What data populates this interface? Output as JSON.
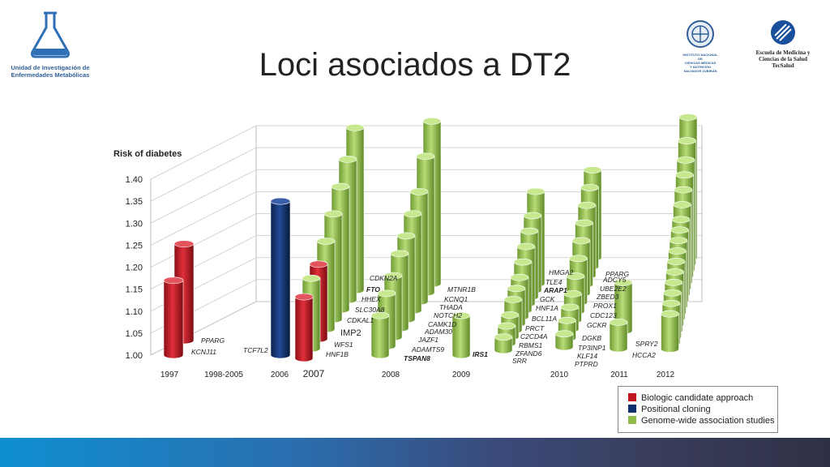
{
  "slide": {
    "title": "Loci asociados a DT2"
  },
  "logos": {
    "left_caption_1": "Unidad de Investigación de",
    "left_caption_2": "Enfermedades Metabólicas",
    "center_caption_1": "INSTITUTO NACIONAL DE",
    "center_caption_2": "CIENCIAS MÉDICAS",
    "center_caption_3": "Y NUTRICIÓN",
    "center_caption_4": "SALVADOR ZUBIRÁN",
    "right_caption_1": "Escuela de Medicina y",
    "right_caption_2": "Ciencias de la Salud",
    "right_caption_3": "TecSalud"
  },
  "legend": {
    "items": [
      {
        "label": "Biologic candidate approach",
        "color": "#c0141e"
      },
      {
        "label": "Positional cloning",
        "color": "#0f2e6e"
      },
      {
        "label": "Genome-wide association  studies",
        "color": "#8fbc4a"
      }
    ]
  },
  "colors": {
    "red": "#c0141e",
    "blue": "#0f2e6e",
    "green": "#8fbc4a"
  },
  "chart_data": {
    "type": "bar",
    "title": "",
    "ylabel": "Risk of diabetes",
    "ylim": [
      1.0,
      1.4
    ],
    "yticks": [
      "1.00",
      "1.05",
      "1.10",
      "1.15",
      "1.20",
      "1.25",
      "1.30",
      "1.35",
      "1.40"
    ],
    "categories": [
      "1997",
      "1998-2005",
      "2006",
      "2007",
      "2008",
      "2009",
      "2010",
      "2011",
      "2012"
    ],
    "groups": [
      {
        "year": "1997",
        "bars": [
          {
            "gene": "PPARG",
            "value": 1.22,
            "type": "red"
          },
          {
            "gene": "KCNJ11",
            "value": 1.17,
            "type": "red"
          }
        ]
      },
      {
        "year": "2006",
        "bars": [
          {
            "gene": "TCF7L2",
            "value": 1.35,
            "type": "blue"
          }
        ]
      },
      {
        "year": "2007",
        "bars": [
          {
            "gene": "CDKN2A",
            "value": 1.37,
            "type": "green"
          },
          {
            "gene": "FTO",
            "value": 1.32,
            "type": "green"
          },
          {
            "gene": "HHEX",
            "value": 1.28,
            "type": "green"
          },
          {
            "gene": "SLC30A8",
            "value": 1.24,
            "type": "green"
          },
          {
            "gene": "CDKAL1",
            "value": 1.2,
            "type": "green"
          },
          {
            "gene": "IMP2",
            "value": 1.17,
            "type": "red"
          },
          {
            "gene": "WFS1",
            "value": 1.16,
            "type": "green"
          },
          {
            "gene": "HNF1B",
            "value": 1.14,
            "type": "red"
          }
        ]
      },
      {
        "year": "2008",
        "bars": [
          {
            "gene": "MTNR1B",
            "value": 1.37,
            "type": "green"
          },
          {
            "gene": "KCNQ1",
            "value": 1.31,
            "type": "green"
          },
          {
            "gene": "THADA",
            "value": 1.25,
            "type": "green"
          },
          {
            "gene": "NOTCH2",
            "value": 1.22,
            "type": "green"
          },
          {
            "gene": "CAMK1D",
            "value": 1.19,
            "type": "green"
          },
          {
            "gene": "ADAM30",
            "value": 1.17,
            "type": "green"
          },
          {
            "gene": "JAZF1",
            "value": 1.14,
            "type": "green"
          },
          {
            "gene": "ADAMTS9",
            "value": 1.12,
            "type": "green"
          },
          {
            "gene": "TSPAN8",
            "value": 1.09,
            "type": "green"
          }
        ]
      },
      {
        "year": "2009",
        "bars": [
          {
            "gene": "IRS1",
            "value": 1.09,
            "type": "green"
          }
        ]
      },
      {
        "year": "2010",
        "bars": [
          {
            "gene": "HMGA2",
            "value": 1.21,
            "type": "green"
          },
          {
            "gene": "TLE4",
            "value": 1.17,
            "type": "green"
          },
          {
            "gene": "ARAP1",
            "value": 1.15,
            "type": "green"
          },
          {
            "gene": "GCK",
            "value": 1.13,
            "type": "green"
          },
          {
            "gene": "HNF1A",
            "value": 1.11,
            "type": "green"
          },
          {
            "gene": "BCL11A",
            "value": 1.09,
            "type": "green"
          },
          {
            "gene": "PRCT",
            "value": 1.08,
            "type": "green"
          },
          {
            "gene": "C2CD4A",
            "value": 1.07,
            "type": "green"
          },
          {
            "gene": "RBMS1",
            "value": 1.05,
            "type": "green"
          },
          {
            "gene": "ZFAND6",
            "value": 1.04,
            "type": "green"
          },
          {
            "gene": "SRR",
            "value": 1.03,
            "type": "green"
          },
          {
            "gene": "PPARG",
            "value": 1.2,
            "type": "green"
          },
          {
            "gene": "ADCY5",
            "value": 1.18,
            "type": "green"
          },
          {
            "gene": "UBE2E2",
            "value": 1.16,
            "type": "green"
          },
          {
            "gene": "ZBED3",
            "value": 1.14,
            "type": "green"
          },
          {
            "gene": "PROX1",
            "value": 1.12,
            "type": "green"
          },
          {
            "gene": "CDC123",
            "value": 1.1,
            "type": "green"
          },
          {
            "gene": "GCKR",
            "value": 1.08,
            "type": "green"
          },
          {
            "gene": "DGKB",
            "value": 1.06,
            "type": "green"
          },
          {
            "gene": "TP3INP1",
            "value": 1.05,
            "type": "green"
          },
          {
            "gene": "KLF14",
            "value": 1.04,
            "type": "green"
          },
          {
            "gene": "PTPRD",
            "value": 1.03,
            "type": "green"
          }
        ]
      },
      {
        "year": "2011",
        "bars": [
          {
            "gene": "SPRY2",
            "value": 1.11,
            "type": "green"
          },
          {
            "gene": "HCCA2",
            "value": 1.06,
            "type": "green"
          }
        ]
      },
      {
        "year": "2012",
        "bars": [
          {
            "gene": "",
            "value": 1.32,
            "type": "green"
          },
          {
            "gene": "",
            "value": 1.28,
            "type": "green"
          },
          {
            "gene": "",
            "value": 1.25,
            "type": "green"
          },
          {
            "gene": "",
            "value": 1.23,
            "type": "green"
          },
          {
            "gene": "",
            "value": 1.21,
            "type": "green"
          },
          {
            "gene": "",
            "value": 1.19,
            "type": "green"
          },
          {
            "gene": "",
            "value": 1.17,
            "type": "green"
          },
          {
            "gene": "",
            "value": 1.16,
            "type": "green"
          },
          {
            "gene": "",
            "value": 1.15,
            "type": "green"
          },
          {
            "gene": "",
            "value": 1.14,
            "type": "green"
          },
          {
            "gene": "",
            "value": 1.13,
            "type": "green"
          },
          {
            "gene": "",
            "value": 1.12,
            "type": "green"
          },
          {
            "gene": "",
            "value": 1.11,
            "type": "green"
          },
          {
            "gene": "",
            "value": 1.1,
            "type": "green"
          },
          {
            "gene": "",
            "value": 1.09,
            "type": "green"
          },
          {
            "gene": "",
            "value": 1.08,
            "type": "green"
          }
        ]
      }
    ]
  }
}
